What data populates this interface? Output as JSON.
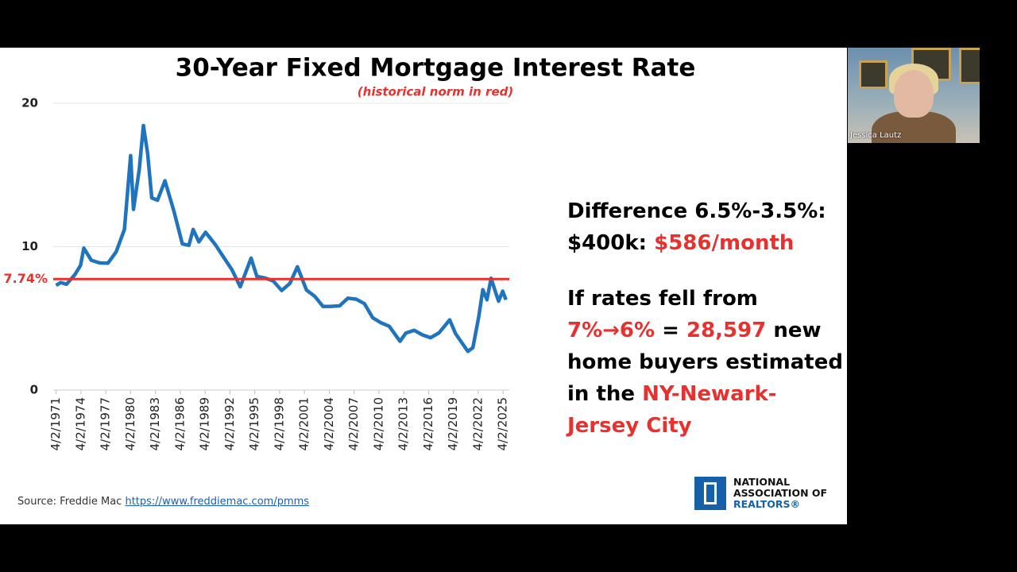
{
  "chart_data": {
    "type": "line",
    "title": "30-Year Fixed Mortgage Interest Rate",
    "subtitle": "(historical norm in red)",
    "x": [
      1971.25,
      1971.8,
      1972.5,
      1973.5,
      1974.2,
      1974.6,
      1975.5,
      1976.5,
      1977.5,
      1978.5,
      1979.5,
      1980.25,
      1980.6,
      1981.3,
      1981.8,
      1982.3,
      1982.8,
      1983.5,
      1984.4,
      1985.5,
      1986.5,
      1987.3,
      1987.8,
      1988.5,
      1989.3,
      1990.5,
      1991.5,
      1992.5,
      1993.5,
      1994.8,
      1995.5,
      1996.5,
      1997.5,
      1998.5,
      1999.5,
      2000.4,
      2001.5,
      2002.5,
      2003.5,
      2004.5,
      2005.5,
      2006.5,
      2007.5,
      2008.5,
      2009.5,
      2010.5,
      2011.5,
      2012.8,
      2013.5,
      2014.5,
      2015.5,
      2016.5,
      2017.5,
      2018.8,
      2019.5,
      2020.5,
      2021.0,
      2021.6,
      2022.3,
      2022.8,
      2023.3,
      2023.8,
      2024.3,
      2024.7,
      2025.2,
      2025.6
    ],
    "values": [
      7.3,
      7.5,
      7.38,
      8.04,
      8.7,
      9.9,
      9.05,
      8.87,
      8.85,
      9.64,
      11.2,
      16.35,
      12.6,
      15.4,
      18.45,
      16.5,
      13.4,
      13.24,
      14.6,
      12.43,
      10.19,
      10.1,
      11.2,
      10.34,
      11.0,
      10.13,
      9.25,
      8.39,
      7.2,
      9.2,
      7.93,
      7.81,
      7.6,
      6.94,
      7.44,
      8.6,
      6.97,
      6.54,
      5.83,
      5.84,
      5.87,
      6.41,
      6.34,
      6.03,
      5.04,
      4.69,
      4.45,
      3.4,
      3.98,
      4.17,
      3.85,
      3.65,
      3.99,
      4.9,
      3.94,
      3.11,
      2.7,
      2.96,
      5.1,
      7.0,
      6.3,
      7.8,
      6.9,
      6.2,
      6.9,
      6.3
    ],
    "color": "#1f74bd",
    "xlim": [
      1970.9,
      2026.0
    ],
    "xticks": [
      {
        "value": 1971.25,
        "label": "4/2/1971"
      },
      {
        "value": 1974.25,
        "label": "4/2/1974"
      },
      {
        "value": 1977.25,
        "label": "4/2/1977"
      },
      {
        "value": 1980.25,
        "label": "4/2/1980"
      },
      {
        "value": 1983.25,
        "label": "4/2/1983"
      },
      {
        "value": 1986.25,
        "label": "4/2/1986"
      },
      {
        "value": 1989.25,
        "label": "4/2/1989"
      },
      {
        "value": 1992.25,
        "label": "4/2/1992"
      },
      {
        "value": 1995.25,
        "label": "4/2/1995"
      },
      {
        "value": 1998.25,
        "label": "4/2/1998"
      },
      {
        "value": 2001.25,
        "label": "4/2/2001"
      },
      {
        "value": 2004.25,
        "label": "4/2/2004"
      },
      {
        "value": 2007.25,
        "label": "4/2/2007"
      },
      {
        "value": 2010.25,
        "label": "4/2/2010"
      },
      {
        "value": 2013.25,
        "label": "4/2/2013"
      },
      {
        "value": 2016.25,
        "label": "4/2/2016"
      },
      {
        "value": 2019.25,
        "label": "4/2/2019"
      },
      {
        "value": 2022.25,
        "label": "4/2/2022"
      },
      {
        "value": 2025.25,
        "label": "4/2/2025"
      }
    ],
    "ylim": [
      0,
      20
    ],
    "yticks": [
      0,
      10,
      20
    ],
    "grid": true,
    "reference_line": {
      "value": 7.74,
      "label": "7.74%",
      "color": "#e8312f"
    }
  },
  "callout_1": {
    "line_1": "Difference 6.5%-3.5%:",
    "line_2_prefix": "$400k:",
    "line_2_highlight": "$586/month"
  },
  "callout_2": {
    "line_1": "If rates fell from",
    "line_2_highlight_1": "7%→6%",
    "line_2_middle": "=",
    "line_2_highlight_2": "28,597",
    "line_2_suffix": "new",
    "line_3": "home buyers estimated",
    "line_4_prefix": "in the",
    "line_4_highlight": "NY-Newark-Jersey City"
  },
  "source": {
    "prefix": "Source: Freddie Mac",
    "link": "https://www.freddiemac.com/pmms"
  },
  "logo": {
    "line_1": "NATIONAL",
    "line_2": "ASSOCIATION OF",
    "line_3": "REALTORS®"
  },
  "video": {
    "participant": "Jessica Lautz"
  }
}
